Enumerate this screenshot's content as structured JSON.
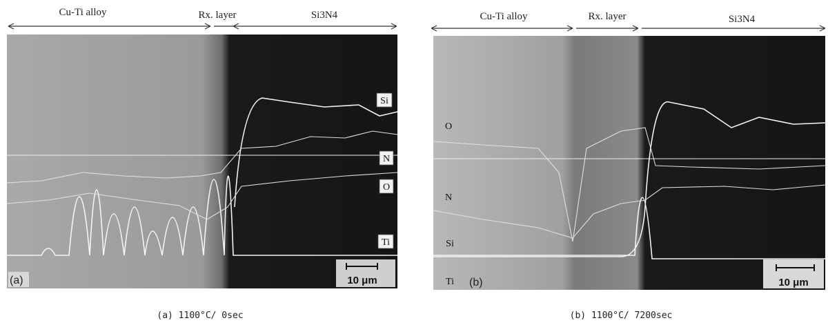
{
  "panels": [
    {
      "regions": [
        "Cu-Ti alloy",
        "Rx. layer",
        "Si3N4"
      ],
      "elements": [
        "Si",
        "N",
        "O",
        "Ti"
      ],
      "panel_label": "(a)",
      "scale_bar": "10 μm",
      "caption": "(a) 1100°C/ 0sec"
    },
    {
      "regions": [
        "Cu-Ti alloy",
        "Rx. layer",
        "Si3N4"
      ],
      "elements": [
        "O",
        "N",
        "Si",
        "Ti"
      ],
      "panel_label": "(b)",
      "scale_bar": "10 μm",
      "caption": "(b) 1100°C/ 7200sec"
    }
  ]
}
